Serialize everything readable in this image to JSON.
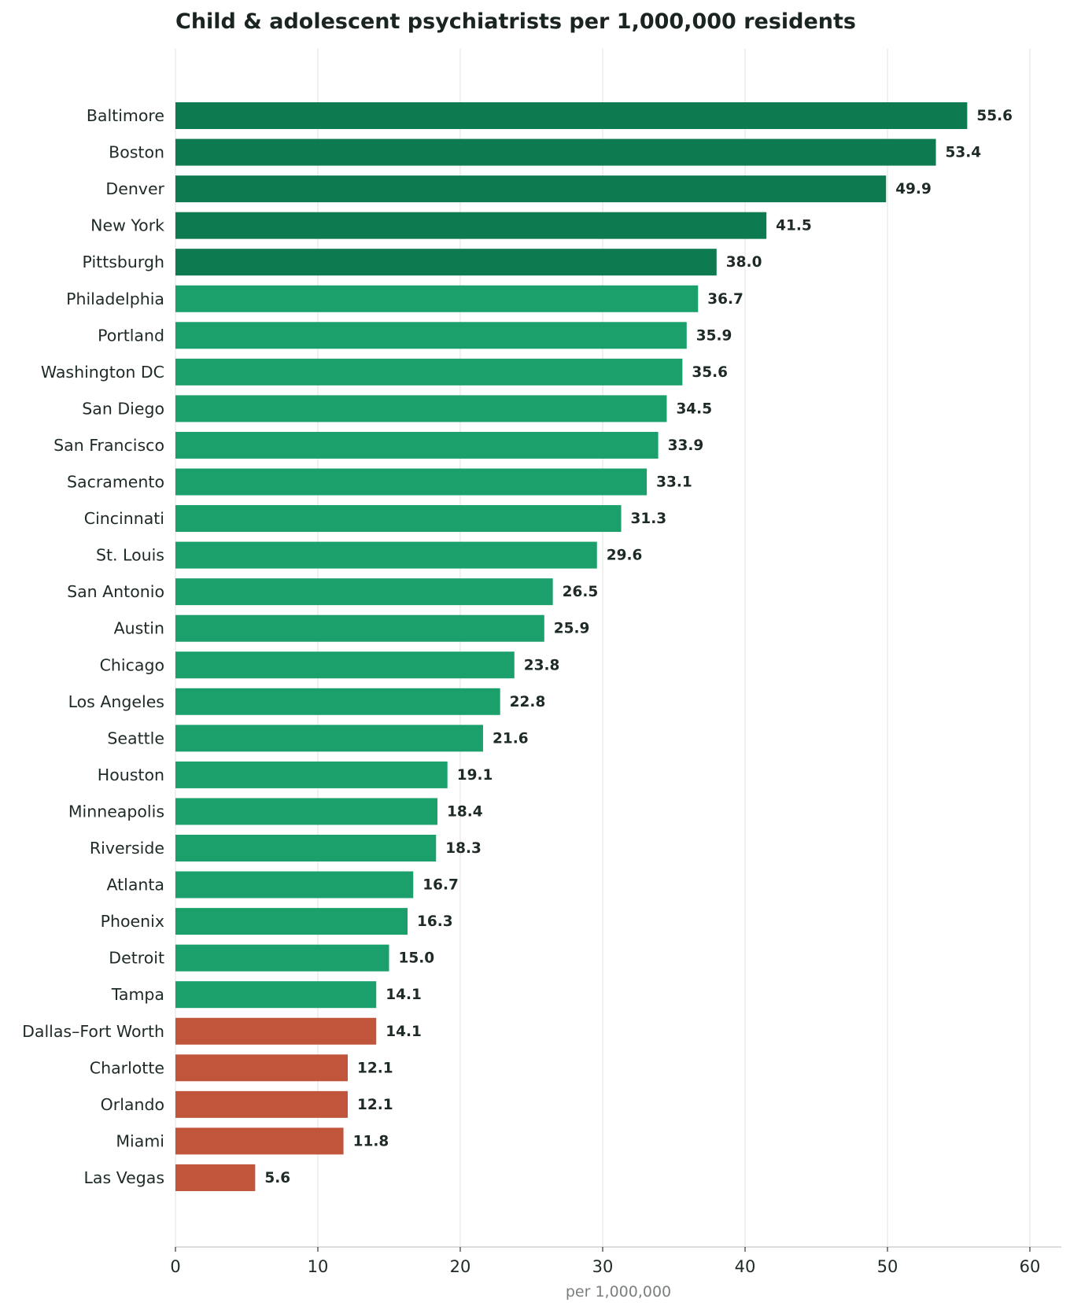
{
  "chart_data": {
    "type": "bar",
    "orientation": "horizontal",
    "title": "Child & adolescent psychiatrists per 1,000,000 residents",
    "xlabel": "per 1,000,000",
    "ylabel": "",
    "xlim": [
      0,
      60
    ],
    "xticks": [
      0,
      10,
      20,
      30,
      40,
      50,
      60
    ],
    "grid": true,
    "colors": {
      "top": "#0e7a50",
      "middle": "#1ba06c",
      "bottom": "#c0553c"
    },
    "categories": [
      "Baltimore",
      "Boston",
      "Denver",
      "New York",
      "Pittsburgh",
      "Philadelphia",
      "Portland",
      "Washington DC",
      "San Diego",
      "San Francisco",
      "Sacramento",
      "Cincinnati",
      "St. Louis",
      "San Antonio",
      "Austin",
      "Chicago",
      "Los Angeles",
      "Seattle",
      "Houston",
      "Minneapolis",
      "Riverside",
      "Atlanta",
      "Phoenix",
      "Detroit",
      "Tampa",
      "Dallas–Fort Worth",
      "Charlotte",
      "Orlando",
      "Miami",
      "Las Vegas"
    ],
    "values": [
      55.6,
      53.4,
      49.9,
      41.5,
      38.0,
      36.7,
      35.9,
      35.6,
      34.5,
      33.9,
      33.1,
      31.3,
      29.6,
      26.5,
      25.9,
      23.8,
      22.8,
      21.6,
      19.1,
      18.4,
      18.3,
      16.7,
      16.3,
      15.0,
      14.1,
      14.1,
      12.1,
      12.1,
      11.8,
      5.6
    ],
    "value_labels": [
      "55.6",
      "53.4",
      "49.9",
      "41.5",
      "38.0",
      "36.7",
      "35.9",
      "35.6",
      "34.5",
      "33.9",
      "33.1",
      "31.3",
      "29.6",
      "26.5",
      "25.9",
      "23.8",
      "22.8",
      "21.6",
      "19.1",
      "18.4",
      "18.3",
      "16.7",
      "16.3",
      "15.0",
      "14.1",
      "14.1",
      "12.1",
      "12.1",
      "11.8",
      "5.6"
    ],
    "groups": [
      "top",
      "top",
      "top",
      "top",
      "top",
      "middle",
      "middle",
      "middle",
      "middle",
      "middle",
      "middle",
      "middle",
      "middle",
      "middle",
      "middle",
      "middle",
      "middle",
      "middle",
      "middle",
      "middle",
      "middle",
      "middle",
      "middle",
      "middle",
      "middle",
      "bottom",
      "bottom",
      "bottom",
      "bottom",
      "bottom"
    ]
  }
}
